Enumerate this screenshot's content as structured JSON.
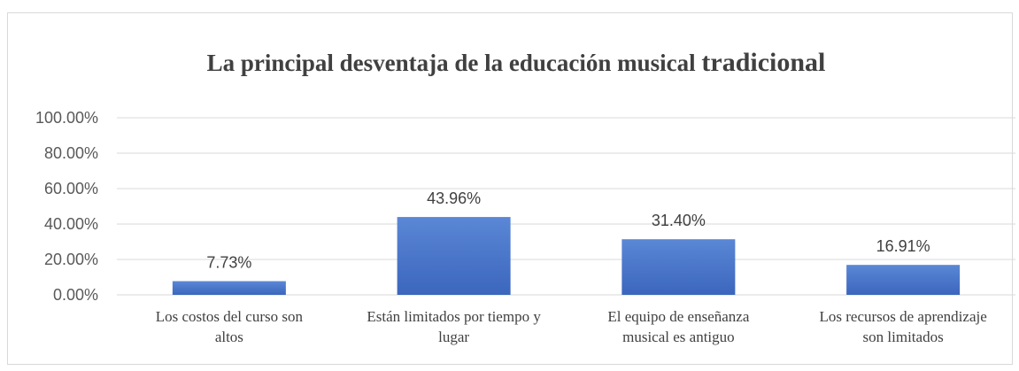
{
  "chart_data": {
    "type": "bar",
    "title_main": "La principal desventaja de la educación musical ",
    "title_tail": "tradicional",
    "categories": [
      [
        "Los costos del curso son",
        "altos"
      ],
      [
        "Están limitados por tiempo y",
        "lugar"
      ],
      [
        "El equipo de enseñanza",
        "musical es antiguo"
      ],
      [
        "Los recursos de aprendizaje",
        "son limitados"
      ]
    ],
    "values": [
      7.73,
      43.96,
      31.4,
      16.91
    ],
    "data_labels": [
      "7.73%",
      "43.96%",
      "31.40%",
      "16.91%"
    ],
    "y_ticks": [
      0,
      20,
      40,
      60,
      80,
      100
    ],
    "y_tick_labels": [
      "0.00%",
      "20.00%",
      "40.00%",
      "60.00%",
      "80.00%",
      "100.00%"
    ],
    "ylim": [
      0,
      100
    ],
    "grid": true,
    "legend": "none",
    "bar_color": "#4472c4"
  }
}
